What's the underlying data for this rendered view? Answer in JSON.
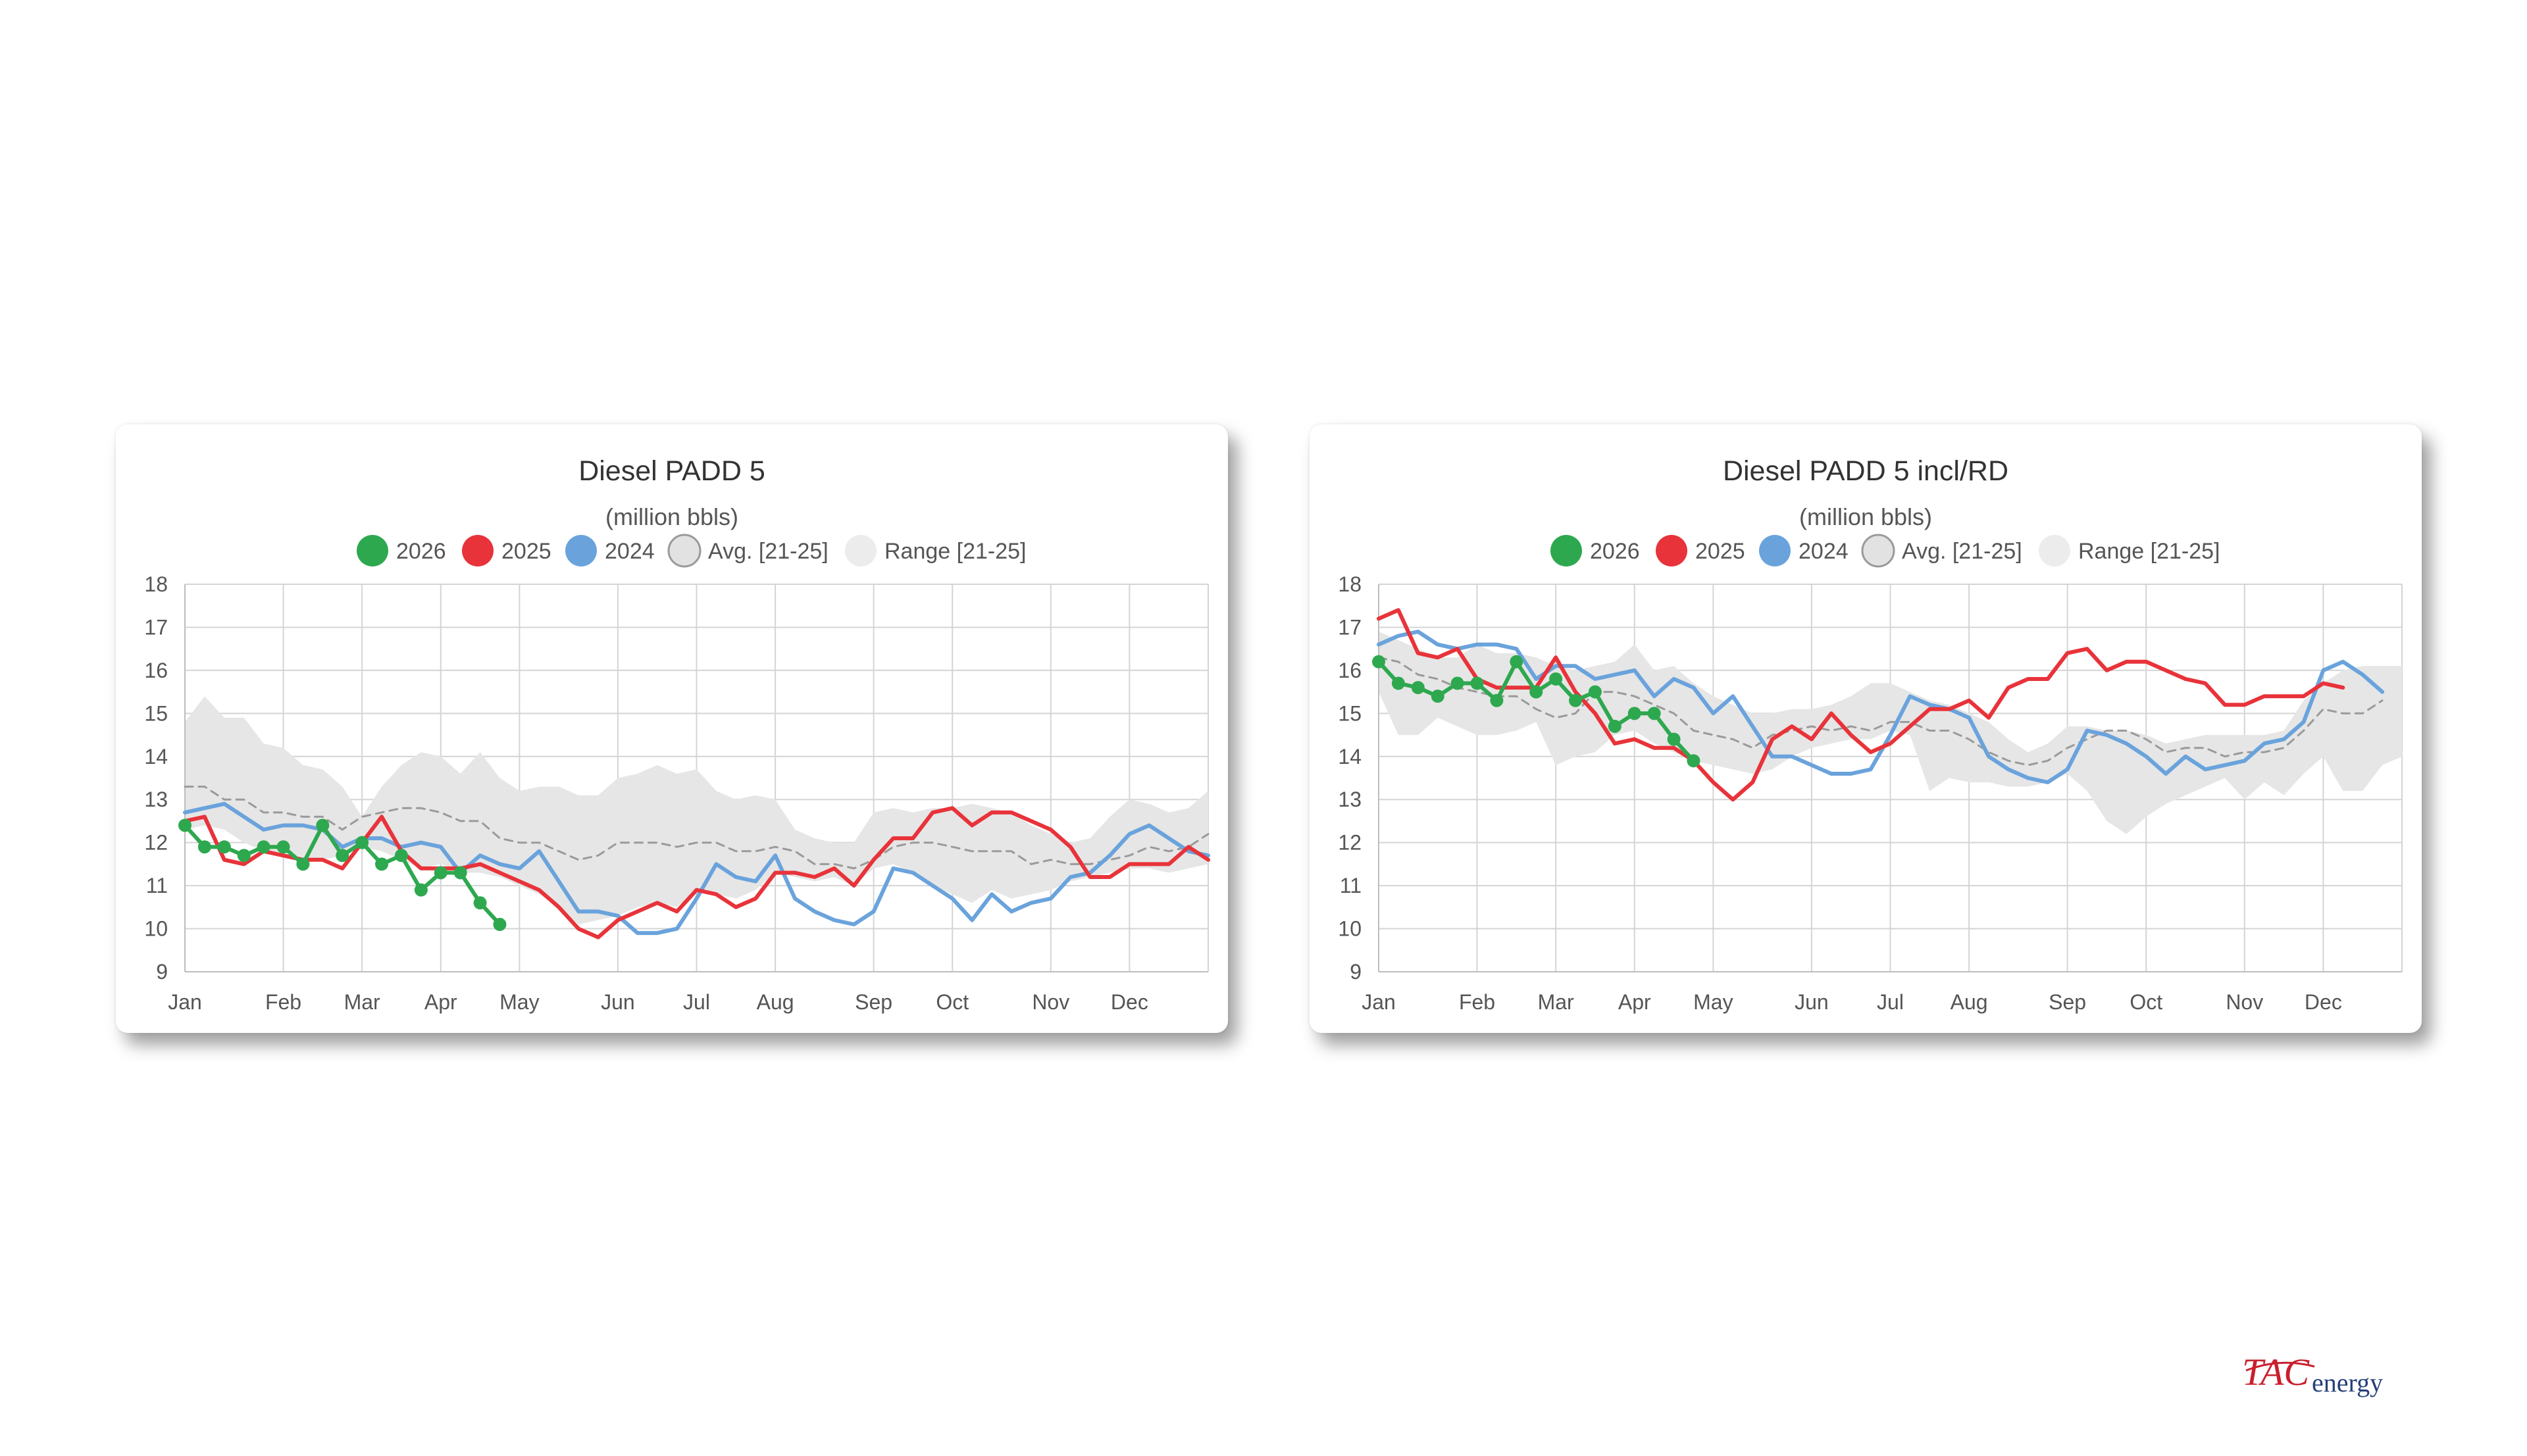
{
  "colors": {
    "y2026": "#2ea84f",
    "y2025": "#e8333a",
    "y2024": "#6aa3dc",
    "avg": "#9a9a9a",
    "range": "#e6e6e6",
    "grid": "#d4d4d4",
    "logo_red": "#c8202e",
    "logo_blue": "#27407a"
  },
  "legend": {
    "y2026": "2026",
    "y2025": "2025",
    "y2024": "2024",
    "avg": "Avg. [21-25]",
    "range": "Range [21-25]"
  },
  "logo": {
    "part1": "TAC",
    "part2": "energy"
  },
  "chart_data": [
    {
      "type": "line",
      "title": "Diesel PADD 5",
      "subtitle": "(million bbls)",
      "x_unit": "week",
      "xlim": [
        1,
        53
      ],
      "ylim": [
        9,
        18
      ],
      "yticks": [
        9,
        10,
        11,
        12,
        13,
        14,
        15,
        16,
        17,
        18
      ],
      "month_ticks": [
        {
          "label": "Jan",
          "week": 1
        },
        {
          "label": "Feb",
          "week": 6
        },
        {
          "label": "Mar",
          "week": 10
        },
        {
          "label": "Apr",
          "week": 14
        },
        {
          "label": "May",
          "week": 18
        },
        {
          "label": "Jun",
          "week": 23
        },
        {
          "label": "Jul",
          "week": 27
        },
        {
          "label": "Aug",
          "week": 31
        },
        {
          "label": "Sep",
          "week": 36
        },
        {
          "label": "Oct",
          "week": 40
        },
        {
          "label": "Nov",
          "week": 45
        },
        {
          "label": "Dec",
          "week": 49
        }
      ],
      "grid": true,
      "legend_position": "top-center",
      "series": [
        {
          "name": "2026",
          "key": "y2026",
          "markers": true,
          "values": [
            12.4,
            11.9,
            11.9,
            11.7,
            11.9,
            11.9,
            11.5,
            12.4,
            11.7,
            12.0,
            11.5,
            11.7,
            10.9,
            11.3,
            11.3,
            10.6,
            10.1
          ]
        },
        {
          "name": "2025",
          "key": "y2025",
          "values": [
            12.5,
            12.6,
            11.6,
            11.5,
            11.8,
            11.7,
            11.6,
            11.6,
            11.4,
            12.0,
            12.6,
            11.8,
            11.4,
            11.4,
            11.4,
            11.5,
            11.3,
            11.1,
            10.9,
            10.5,
            10.0,
            9.8,
            10.2,
            10.4,
            10.6,
            10.4,
            10.9,
            10.8,
            10.5,
            10.7,
            11.3,
            11.3,
            11.2,
            11.4,
            11.0,
            11.6,
            12.1,
            12.1,
            12.7,
            12.8,
            12.4,
            12.7,
            12.7,
            12.5,
            12.3,
            11.9,
            11.2,
            11.2,
            11.5,
            11.5,
            11.5,
            11.9,
            11.6
          ]
        },
        {
          "name": "2024",
          "key": "y2024",
          "values": [
            12.7,
            12.8,
            12.9,
            12.6,
            12.3,
            12.4,
            12.4,
            12.3,
            11.9,
            12.1,
            12.1,
            11.9,
            12.0,
            11.9,
            11.3,
            11.7,
            11.5,
            11.4,
            11.8,
            11.1,
            10.4,
            10.4,
            10.3,
            9.9,
            9.9,
            10.0,
            10.7,
            11.5,
            11.2,
            11.1,
            11.7,
            10.7,
            10.4,
            10.2,
            10.1,
            10.4,
            11.4,
            11.3,
            11.0,
            10.7,
            10.2,
            10.8,
            10.4,
            10.6,
            10.7,
            11.2,
            11.3,
            11.7,
            12.2,
            12.4,
            12.1,
            11.8,
            11.7
          ]
        },
        {
          "name": "Avg. [21-25]",
          "key": "avg",
          "dashed": true,
          "values": [
            13.3,
            13.3,
            13.0,
            13.0,
            12.7,
            12.7,
            12.6,
            12.6,
            12.3,
            12.6,
            12.7,
            12.8,
            12.8,
            12.7,
            12.5,
            12.5,
            12.1,
            12.0,
            12.0,
            11.8,
            11.6,
            11.7,
            12.0,
            12.0,
            12.0,
            11.9,
            12.0,
            12.0,
            11.8,
            11.8,
            11.9,
            11.8,
            11.5,
            11.5,
            11.4,
            11.6,
            11.9,
            12.0,
            12.0,
            11.9,
            11.8,
            11.8,
            11.8,
            11.5,
            11.6,
            11.5,
            11.5,
            11.6,
            11.7,
            11.9,
            11.8,
            11.9,
            12.2
          ]
        }
      ],
      "range": {
        "name": "Range [21-25]",
        "min": [
          12.3,
          12.4,
          12.3,
          12.0,
          11.8,
          11.7,
          11.6,
          11.6,
          11.7,
          11.9,
          11.8,
          11.6,
          11.4,
          11.5,
          11.3,
          11.3,
          11.2,
          11.0,
          10.8,
          10.5,
          10.1,
          10.2,
          10.3,
          10.5,
          10.6,
          10.5,
          10.9,
          10.8,
          10.7,
          10.9,
          11.3,
          11.2,
          11.1,
          11.2,
          11.0,
          11.4,
          11.5,
          11.3,
          11.0,
          10.8,
          10.6,
          10.9,
          10.7,
          10.8,
          10.9,
          11.1,
          11.2,
          11.3,
          11.4,
          11.4,
          11.3,
          11.4,
          11.5
        ],
        "max": [
          14.8,
          15.4,
          14.9,
          14.9,
          14.3,
          14.2,
          13.8,
          13.7,
          13.3,
          12.6,
          13.3,
          13.8,
          14.1,
          14.0,
          13.6,
          14.1,
          13.5,
          13.2,
          13.3,
          13.3,
          13.1,
          13.1,
          13.5,
          13.6,
          13.8,
          13.6,
          13.7,
          13.2,
          13.0,
          13.1,
          13.0,
          12.3,
          12.1,
          12.0,
          12.0,
          12.7,
          12.8,
          12.7,
          12.8,
          12.8,
          12.9,
          12.8,
          12.7,
          12.4,
          12.2,
          12.0,
          12.1,
          12.6,
          13.0,
          12.9,
          12.7,
          12.8,
          13.2
        ]
      }
    },
    {
      "type": "line",
      "title": "Diesel PADD 5 incl/RD",
      "subtitle": "(million bbls)",
      "x_unit": "week",
      "xlim": [
        1,
        53
      ],
      "ylim": [
        9,
        18
      ],
      "yticks": [
        9,
        10,
        11,
        12,
        13,
        14,
        15,
        16,
        17,
        18
      ],
      "month_ticks": [
        {
          "label": "Jan",
          "week": 1
        },
        {
          "label": "Feb",
          "week": 6
        },
        {
          "label": "Mar",
          "week": 10
        },
        {
          "label": "Apr",
          "week": 14
        },
        {
          "label": "May",
          "week": 18
        },
        {
          "label": "Jun",
          "week": 23
        },
        {
          "label": "Jul",
          "week": 27
        },
        {
          "label": "Aug",
          "week": 31
        },
        {
          "label": "Sep",
          "week": 36
        },
        {
          "label": "Oct",
          "week": 40
        },
        {
          "label": "Nov",
          "week": 45
        },
        {
          "label": "Dec",
          "week": 49
        }
      ],
      "grid": true,
      "legend_position": "top-center",
      "series": [
        {
          "name": "2026",
          "key": "y2026",
          "markers": true,
          "values": [
            16.2,
            15.7,
            15.6,
            15.4,
            15.7,
            15.7,
            15.3,
            16.2,
            15.5,
            15.8,
            15.3,
            15.5,
            14.7,
            15.0,
            15.0,
            14.4,
            13.9
          ]
        },
        {
          "name": "2025",
          "key": "y2025",
          "values": [
            17.2,
            17.4,
            16.4,
            16.3,
            16.5,
            15.8,
            15.6,
            15.6,
            15.6,
            16.3,
            15.5,
            15.0,
            14.3,
            14.4,
            14.2,
            14.2,
            13.9,
            13.4,
            13.0,
            13.4,
            14.4,
            14.7,
            14.4,
            15.0,
            14.5,
            14.1,
            14.3,
            14.7,
            15.1,
            15.1,
            15.3,
            14.9,
            15.6,
            15.8,
            15.8,
            16.4,
            16.5,
            16.0,
            16.2,
            16.2,
            16.0,
            15.8,
            15.7,
            15.2,
            15.2,
            15.4,
            15.4,
            15.4,
            15.7,
            15.6
          ]
        },
        {
          "name": "2024",
          "key": "y2024",
          "values": [
            16.6,
            16.8,
            16.9,
            16.6,
            16.5,
            16.6,
            16.6,
            16.5,
            15.8,
            16.1,
            16.1,
            15.8,
            15.9,
            16.0,
            15.4,
            15.8,
            15.6,
            15.0,
            15.4,
            14.7,
            14.0,
            14.0,
            13.8,
            13.6,
            13.6,
            13.7,
            14.5,
            15.4,
            15.2,
            15.1,
            14.9,
            14.0,
            13.7,
            13.5,
            13.4,
            13.7,
            14.6,
            14.5,
            14.3,
            14.0,
            13.6,
            14.0,
            13.7,
            13.8,
            13.9,
            14.3,
            14.4,
            14.8,
            16.0,
            16.2,
            15.9,
            15.5
          ]
        },
        {
          "name": "Avg. [21-25]",
          "key": "avg",
          "dashed": true,
          "values": [
            16.3,
            16.2,
            15.9,
            15.8,
            15.6,
            15.5,
            15.4,
            15.4,
            15.1,
            14.9,
            15.0,
            15.5,
            15.5,
            15.4,
            15.2,
            15.0,
            14.6,
            14.5,
            14.4,
            14.2,
            14.5,
            14.6,
            14.7,
            14.6,
            14.7,
            14.6,
            14.8,
            14.8,
            14.6,
            14.6,
            14.4,
            14.1,
            13.9,
            13.8,
            13.9,
            14.2,
            14.4,
            14.6,
            14.6,
            14.4,
            14.1,
            14.2,
            14.2,
            14.0,
            14.1,
            14.1,
            14.2,
            14.6,
            15.1,
            15.0,
            15.0,
            15.3
          ]
        }
      ],
      "range": {
        "name": "Range [21-25]",
        "min": [
          15.5,
          14.5,
          14.5,
          14.9,
          14.7,
          14.5,
          14.5,
          14.6,
          14.8,
          13.8,
          14.0,
          14.1,
          14.5,
          14.6,
          14.3,
          14.1,
          13.9,
          13.8,
          13.7,
          13.6,
          13.7,
          14.0,
          14.2,
          14.3,
          14.4,
          14.4,
          14.6,
          14.5,
          13.2,
          13.5,
          13.4,
          13.4,
          13.3,
          13.3,
          13.4,
          13.6,
          13.2,
          12.5,
          12.2,
          12.6,
          12.9,
          13.1,
          13.3,
          13.5,
          13.0,
          13.4,
          13.1,
          13.6,
          14.0,
          13.2,
          13.2,
          13.8,
          14.0
        ],
        "max": [
          16.9,
          16.7,
          16.5,
          16.3,
          16.3,
          16.6,
          16.4,
          16.4,
          16.3,
          16.1,
          16.0,
          16.1,
          16.2,
          16.6,
          16.0,
          16.1,
          15.7,
          15.4,
          15.2,
          15.0,
          15.0,
          15.1,
          15.1,
          15.2,
          15.4,
          15.7,
          15.7,
          15.5,
          15.3,
          15.2,
          15.0,
          14.8,
          14.4,
          14.1,
          14.3,
          14.7,
          14.7,
          14.6,
          14.6,
          14.5,
          14.3,
          14.4,
          14.5,
          14.5,
          14.5,
          14.5,
          14.6,
          15.3,
          15.7,
          16.0,
          16.1,
          16.1,
          16.1
        ]
      }
    }
  ]
}
